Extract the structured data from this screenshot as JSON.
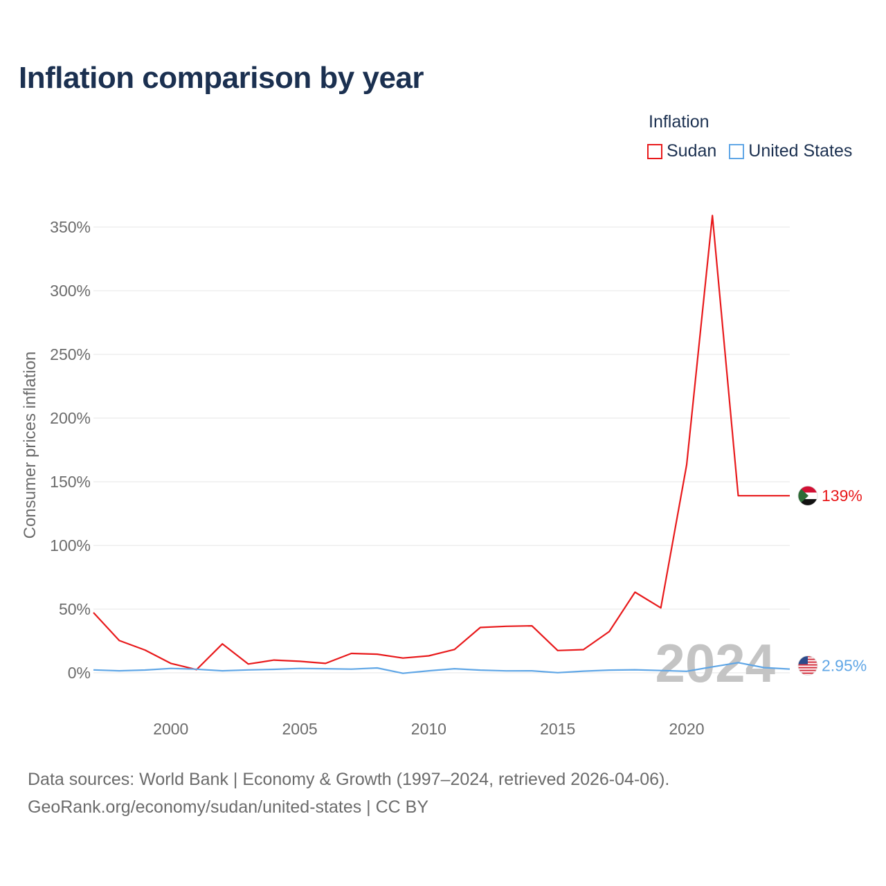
{
  "title": "Inflation comparison by year",
  "legend": {
    "title": "Inflation",
    "items": [
      {
        "label": "Sudan",
        "color": "#e8191b"
      },
      {
        "label": "United States",
        "color": "#5fa6e6"
      }
    ]
  },
  "watermark_year": "2024",
  "footer": {
    "line1": "Data sources: World Bank | Economy & Growth (1997–2024, retrieved 2026-04-06).",
    "line2": "GeoRank.org/economy/sudan/united-states | CC BY"
  },
  "chart_data": {
    "type": "line",
    "title": "Inflation comparison by year",
    "xlabel": "",
    "ylabel": "Consumer prices inflation",
    "xlim": [
      1997,
      2024
    ],
    "ylim": [
      -20,
      370
    ],
    "x_ticks": [
      2000,
      2005,
      2010,
      2015,
      2020
    ],
    "y_ticks": [
      0,
      50,
      100,
      150,
      200,
      250,
      300,
      350
    ],
    "y_tick_labels": [
      "0%",
      "50%",
      "100%",
      "150%",
      "200%",
      "250%",
      "300%",
      "350%"
    ],
    "x": [
      1997,
      1998,
      1999,
      2000,
      2001,
      2002,
      2003,
      2004,
      2005,
      2006,
      2007,
      2008,
      2009,
      2010,
      2011,
      2012,
      2013,
      2014,
      2015,
      2016,
      2017,
      2018,
      2019,
      2020,
      2021,
      2022,
      2023,
      2024
    ],
    "series": [
      {
        "name": "Sudan",
        "color": "#e8191b",
        "end_label": "139%",
        "values": [
          47.3,
          25.3,
          17.9,
          7.4,
          2.5,
          22.7,
          6.9,
          10.0,
          9.0,
          7.4,
          15.2,
          14.6,
          11.6,
          13.3,
          18.3,
          35.6,
          36.5,
          36.9,
          17.5,
          18.2,
          32.4,
          63.3,
          51.0,
          163.3,
          359.1,
          139.0,
          139.0,
          139.0
        ]
      },
      {
        "name": "United States",
        "color": "#5fa6e6",
        "end_label": "2.95%",
        "values": [
          2.3,
          1.6,
          2.2,
          3.4,
          2.8,
          1.6,
          2.3,
          2.7,
          3.4,
          3.2,
          2.9,
          3.8,
          -0.4,
          1.6,
          3.2,
          2.1,
          1.5,
          1.6,
          0.1,
          1.3,
          2.1,
          2.4,
          1.8,
          1.2,
          4.7,
          8.0,
          4.1,
          2.95
        ]
      }
    ]
  }
}
